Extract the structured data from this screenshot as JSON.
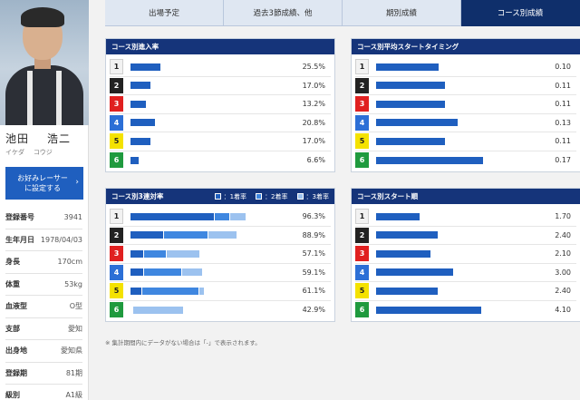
{
  "tabs": [
    {
      "label": "出場予定",
      "active": false
    },
    {
      "label": "過去3節成績、他",
      "active": false
    },
    {
      "label": "期別成績",
      "active": false
    },
    {
      "label": "コース別成績",
      "active": true
    }
  ],
  "racer": {
    "name_family": "池田",
    "name_given": "浩二",
    "kana_family": "イケダ",
    "kana_given": "コウジ",
    "fav_button": "お好みレーサーに設定する",
    "info": [
      {
        "key": "登録番号",
        "value": "3941"
      },
      {
        "key": "生年月日",
        "value": "1978/04/03"
      },
      {
        "key": "身長",
        "value": "170cm"
      },
      {
        "key": "体重",
        "value": "53kg"
      },
      {
        "key": "血液型",
        "value": "O型"
      },
      {
        "key": "支部",
        "value": "愛知"
      },
      {
        "key": "出身地",
        "value": "愛知県"
      },
      {
        "key": "登録期",
        "value": "81期"
      },
      {
        "key": "級別",
        "value": "A1級"
      }
    ]
  },
  "colors": {
    "header": "#15347a",
    "bar": "#1f5fbf",
    "bar_second": "#3f87e0",
    "bar_third": "#9cc2ef",
    "tab_active": "#0f2f6b"
  },
  "panels": {
    "entry_rate": {
      "title": "コース別進入率",
      "rows": [
        {
          "lane": "1",
          "value": 25.5,
          "label": "25.5%"
        },
        {
          "lane": "2",
          "value": 17.0,
          "label": "17.0%"
        },
        {
          "lane": "3",
          "value": 13.2,
          "label": "13.2%"
        },
        {
          "lane": "4",
          "value": 20.8,
          "label": "20.8%"
        },
        {
          "lane": "5",
          "value": 17.0,
          "label": "17.0%"
        },
        {
          "lane": "6",
          "value": 6.6,
          "label": "6.6%"
        }
      ]
    },
    "start_timing": {
      "title": "コース別平均スタートタイミング",
      "rows": [
        {
          "lane": "1",
          "value": 0.1,
          "label": "0.10"
        },
        {
          "lane": "2",
          "value": 0.11,
          "label": "0.11"
        },
        {
          "lane": "3",
          "value": 0.11,
          "label": "0.11"
        },
        {
          "lane": "4",
          "value": 0.13,
          "label": "0.13"
        },
        {
          "lane": "5",
          "value": 0.11,
          "label": "0.11"
        },
        {
          "lane": "6",
          "value": 0.17,
          "label": "0.17"
        }
      ]
    },
    "top3_rate": {
      "title": "コース別3連対率",
      "legend": [
        "：1着率",
        "：2着率",
        "：3着率"
      ],
      "rows": [
        {
          "lane": "1",
          "first": 71.0,
          "second": 12.5,
          "third": 12.8,
          "label": "96.3%"
        },
        {
          "lane": "2",
          "first": 28.0,
          "second": 37.0,
          "third": 23.9,
          "label": "88.9%"
        },
        {
          "lane": "3",
          "first": 11.0,
          "second": 18.0,
          "third": 28.1,
          "label": "57.1%"
        },
        {
          "lane": "4",
          "first": 11.0,
          "second": 31.0,
          "third": 17.1,
          "label": "59.1%"
        },
        {
          "lane": "5",
          "first": 9.0,
          "second": 48.0,
          "third": 4.1,
          "label": "61.1%"
        },
        {
          "lane": "6",
          "first": 0.0,
          "second": 0.0,
          "third": 42.9,
          "label": "42.9%"
        }
      ]
    },
    "start_order": {
      "title": "コース別スタート順",
      "rows": [
        {
          "lane": "1",
          "value": 1.7,
          "label": "1.70"
        },
        {
          "lane": "2",
          "value": 2.4,
          "label": "2.40"
        },
        {
          "lane": "3",
          "value": 2.1,
          "label": "2.10"
        },
        {
          "lane": "4",
          "value": 3.0,
          "label": "3.00"
        },
        {
          "lane": "5",
          "value": 2.4,
          "label": "2.40"
        },
        {
          "lane": "6",
          "value": 4.1,
          "label": "4.10"
        }
      ]
    }
  },
  "note": "※ 集計期間内にデータがない場合は「-」で表示されます。"
}
